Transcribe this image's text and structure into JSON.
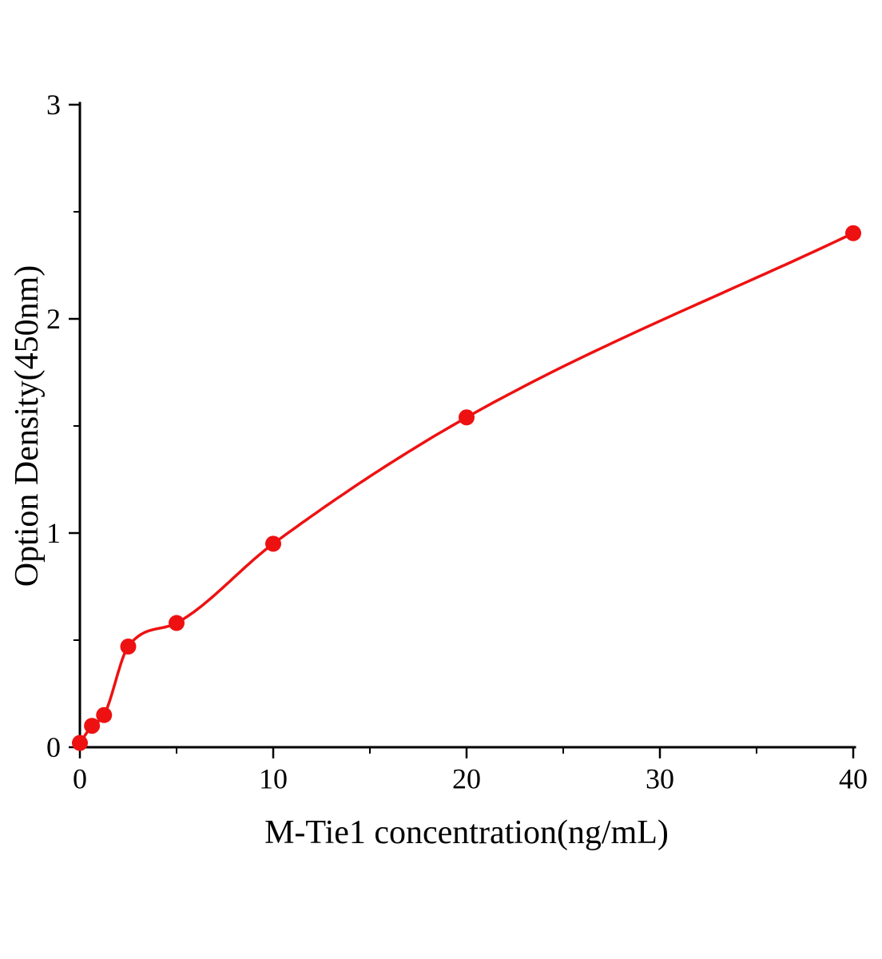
{
  "figure": {
    "background": "#ffffff"
  },
  "chart_data": {
    "type": "scatter",
    "title": "",
    "xlabel": "M-Tie1 concentration(ng/mL)",
    "ylabel": "Option Density(450nm)",
    "x": [
      0,
      0.625,
      1.25,
      2.5,
      5,
      10,
      20,
      40
    ],
    "y": [
      0.02,
      0.1,
      0.15,
      0.47,
      0.58,
      0.95,
      1.54,
      2.4
    ],
    "xlim": [
      0,
      40
    ],
    "ylim": [
      0,
      3
    ],
    "x_major_ticks": [
      0,
      10,
      20,
      30,
      40
    ],
    "x_minor_ticks": [
      5,
      15,
      25,
      35
    ],
    "y_major_ticks": [
      0,
      1,
      2,
      3
    ],
    "y_minor_ticks": [
      0.5,
      1.5,
      2.5
    ],
    "grid": false,
    "legend": null,
    "marker": "circle",
    "marker_radius": 10,
    "curve": "smooth monotone fit through data points",
    "series_color": "#ee1111",
    "axis_color": "#000000"
  }
}
